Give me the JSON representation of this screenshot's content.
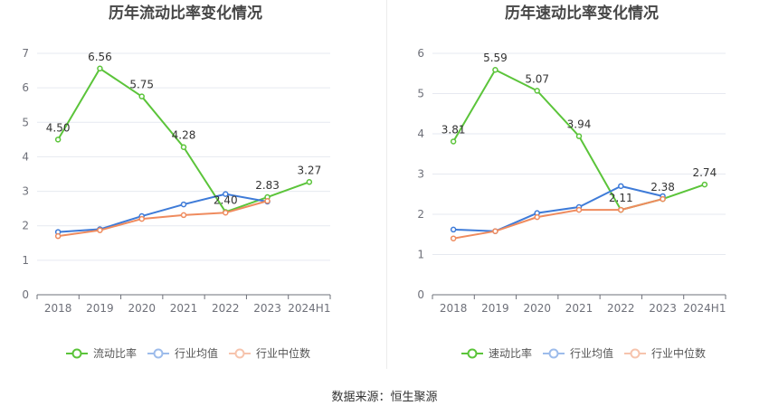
{
  "footer": {
    "source": "数据来源：恒生聚源"
  },
  "chart_data": [
    {
      "type": "line",
      "title": "历年流动比率变化情况",
      "categories": [
        "2018",
        "2019",
        "2020",
        "2021",
        "2022",
        "2023",
        "2024H1"
      ],
      "ylim": [
        0,
        7
      ],
      "yticks": [
        0,
        1,
        2,
        3,
        4,
        5,
        6,
        7
      ],
      "grid": true,
      "legend": "bottom",
      "series": [
        {
          "name": "流动比率",
          "color": "#5bc43a",
          "values": [
            4.5,
            6.56,
            5.75,
            4.28,
            2.4,
            2.83,
            3.27
          ],
          "labels": [
            "4.50",
            "6.56",
            "5.75",
            "4.28",
            "2.40",
            "2.83",
            "3.27"
          ]
        },
        {
          "name": "行业均值",
          "color": "#3e7bd8",
          "values": [
            1.82,
            1.9,
            2.28,
            2.62,
            2.92,
            2.7,
            null
          ]
        },
        {
          "name": "行业中位数",
          "color": "#ef8b5e",
          "values": [
            1.7,
            1.87,
            2.2,
            2.31,
            2.38,
            2.72,
            null
          ]
        }
      ]
    },
    {
      "type": "line",
      "title": "历年速动比率变化情况",
      "categories": [
        "2018",
        "2019",
        "2020",
        "2021",
        "2022",
        "2023",
        "2024H1"
      ],
      "ylim": [
        0,
        6
      ],
      "yticks": [
        0,
        1,
        2,
        3,
        4,
        5,
        6
      ],
      "grid": true,
      "legend": "bottom",
      "series": [
        {
          "name": "速动比率",
          "color": "#5bc43a",
          "values": [
            3.81,
            5.59,
            5.07,
            3.94,
            2.11,
            2.38,
            2.74
          ],
          "labels": [
            "3.81",
            "5.59",
            "5.07",
            "3.94",
            "2.11",
            "2.38",
            "2.74"
          ]
        },
        {
          "name": "行业均值",
          "color": "#3e7bd8",
          "values": [
            1.62,
            1.58,
            2.03,
            2.18,
            2.7,
            2.45,
            null
          ]
        },
        {
          "name": "行业中位数",
          "color": "#ef8b5e",
          "values": [
            1.4,
            1.58,
            1.93,
            2.11,
            2.11,
            2.38,
            null
          ]
        }
      ]
    }
  ]
}
